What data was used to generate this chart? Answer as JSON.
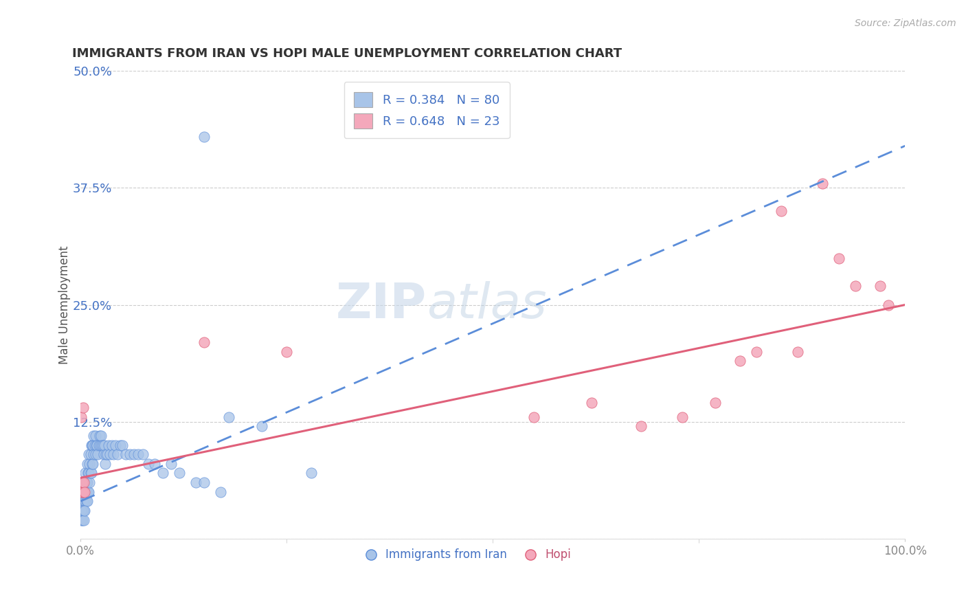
{
  "title": "IMMIGRANTS FROM IRAN VS HOPI MALE UNEMPLOYMENT CORRELATION CHART",
  "source": "Source: ZipAtlas.com",
  "ylabel": "Male Unemployment",
  "xlabel": "",
  "xlim": [
    0,
    1.0
  ],
  "ylim": [
    0,
    0.5
  ],
  "yticks": [
    0.0,
    0.125,
    0.25,
    0.375,
    0.5
  ],
  "ytick_labels": [
    "",
    "12.5%",
    "25.0%",
    "37.5%",
    "50.0%"
  ],
  "xtick_labels": [
    "0.0%",
    "100.0%"
  ],
  "blue_R": 0.384,
  "blue_N": 80,
  "pink_R": 0.648,
  "pink_N": 23,
  "blue_color": "#a8c4e8",
  "pink_color": "#f4a8bb",
  "blue_line_color": "#5b8dd9",
  "pink_line_color": "#e0607a",
  "watermark_zip": "ZIP",
  "watermark_atlas": "atlas",
  "legend_label_blue": "Immigrants from Iran",
  "legend_label_pink": "Hopi",
  "blue_points_x": [
    0.002,
    0.003,
    0.004,
    0.004,
    0.005,
    0.005,
    0.006,
    0.006,
    0.006,
    0.007,
    0.007,
    0.007,
    0.008,
    0.008,
    0.008,
    0.009,
    0.009,
    0.01,
    0.01,
    0.01,
    0.011,
    0.011,
    0.012,
    0.012,
    0.013,
    0.013,
    0.014,
    0.014,
    0.015,
    0.015,
    0.016,
    0.016,
    0.017,
    0.018,
    0.018,
    0.019,
    0.02,
    0.021,
    0.022,
    0.023,
    0.024,
    0.025,
    0.026,
    0.027,
    0.028,
    0.029,
    0.03,
    0.031,
    0.032,
    0.034,
    0.036,
    0.038,
    0.04,
    0.042,
    0.045,
    0.048,
    0.051,
    0.055,
    0.06,
    0.065,
    0.07,
    0.076,
    0.082,
    0.09,
    0.1,
    0.11,
    0.12,
    0.14,
    0.15,
    0.17,
    0.001,
    0.001,
    0.002,
    0.003,
    0.004,
    0.005,
    0.15,
    0.18,
    0.22,
    0.28
  ],
  "blue_points_y": [
    0.03,
    0.04,
    0.03,
    0.05,
    0.04,
    0.06,
    0.04,
    0.05,
    0.07,
    0.04,
    0.05,
    0.06,
    0.04,
    0.06,
    0.08,
    0.05,
    0.07,
    0.05,
    0.07,
    0.09,
    0.06,
    0.08,
    0.07,
    0.09,
    0.07,
    0.1,
    0.08,
    0.1,
    0.08,
    0.1,
    0.09,
    0.11,
    0.1,
    0.09,
    0.11,
    0.1,
    0.1,
    0.09,
    0.1,
    0.11,
    0.1,
    0.11,
    0.1,
    0.1,
    0.09,
    0.1,
    0.08,
    0.09,
    0.09,
    0.1,
    0.09,
    0.1,
    0.09,
    0.1,
    0.09,
    0.1,
    0.1,
    0.09,
    0.09,
    0.09,
    0.09,
    0.09,
    0.08,
    0.08,
    0.07,
    0.08,
    0.07,
    0.06,
    0.06,
    0.05,
    0.02,
    0.03,
    0.02,
    0.03,
    0.02,
    0.03,
    0.43,
    0.13,
    0.12,
    0.07
  ],
  "pink_points_x": [
    0.001,
    0.002,
    0.003,
    0.004,
    0.005,
    0.001,
    0.003,
    0.15,
    0.25,
    0.55,
    0.62,
    0.68,
    0.73,
    0.77,
    0.8,
    0.82,
    0.85,
    0.87,
    0.9,
    0.92,
    0.94,
    0.97,
    0.98
  ],
  "pink_points_y": [
    0.05,
    0.06,
    0.05,
    0.06,
    0.05,
    0.13,
    0.14,
    0.21,
    0.2,
    0.13,
    0.145,
    0.12,
    0.13,
    0.145,
    0.19,
    0.2,
    0.35,
    0.2,
    0.38,
    0.3,
    0.27,
    0.27,
    0.25
  ],
  "blue_line_start_x": 0.0,
  "blue_line_start_y": 0.04,
  "blue_line_end_x": 1.0,
  "blue_line_end_y": 0.42,
  "pink_line_start_x": 0.0,
  "pink_line_start_y": 0.065,
  "pink_line_end_x": 1.0,
  "pink_line_end_y": 0.25
}
